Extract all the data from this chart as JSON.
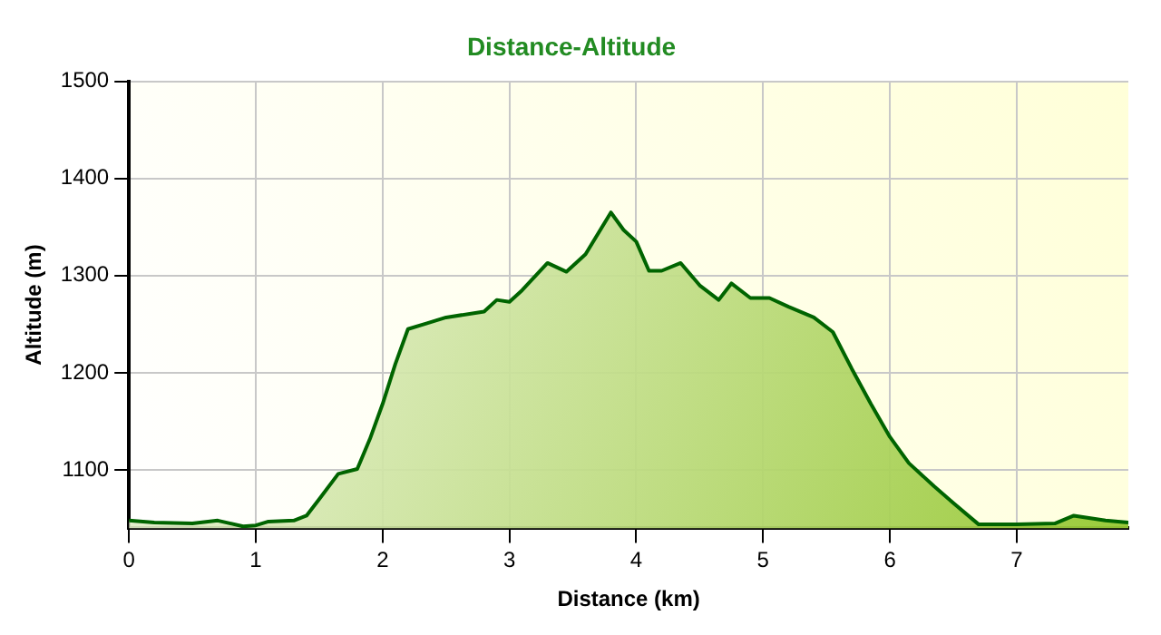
{
  "chart_data": {
    "type": "area",
    "title": "Distance-Altitude",
    "xlabel": "Distance (km)",
    "ylabel": "Altitude (m)",
    "series": [
      {
        "color": "#006400",
        "x": [
          0,
          0.2,
          0.5,
          0.7,
          0.9,
          1.0,
          1.1,
          1.3,
          1.4,
          1.5,
          1.65,
          1.8,
          1.9,
          2.0,
          2.1,
          2.2,
          2.35,
          2.5,
          2.8,
          2.9,
          3.0,
          3.1,
          3.3,
          3.45,
          3.6,
          3.8,
          3.9,
          4.0,
          4.1,
          4.2,
          4.35,
          4.5,
          4.65,
          4.75,
          4.9,
          5.05,
          5.2,
          5.4,
          5.55,
          5.7,
          5.85,
          6.0,
          6.15,
          6.35,
          6.5,
          6.7,
          7.0,
          7.3,
          7.45,
          7.7,
          7.88
        ],
        "values": [
          1048,
          1046,
          1045,
          1048,
          1042,
          1043,
          1047,
          1048,
          1053,
          1070,
          1096,
          1101,
          1132,
          1168,
          1209,
          1245,
          1251,
          1257,
          1263,
          1275,
          1273,
          1285,
          1313,
          1304,
          1322,
          1365,
          1347,
          1335,
          1305,
          1305,
          1313,
          1290,
          1275,
          1292,
          1277,
          1277,
          1268,
          1257,
          1242,
          1204,
          1168,
          1134,
          1107,
          1083,
          1066,
          1044,
          1044,
          1045,
          1053,
          1048,
          1046
        ]
      }
    ],
    "xlim": [
      0,
      7.88
    ],
    "xticks": [
      0,
      1,
      2,
      3,
      4,
      5,
      6,
      7
    ],
    "ylim": [
      1040,
      1500
    ],
    "yticks": [
      1100,
      1200,
      1300,
      1400,
      1500
    ],
    "grid": true,
    "legend": false,
    "marker": "none",
    "line_style": "solid"
  }
}
